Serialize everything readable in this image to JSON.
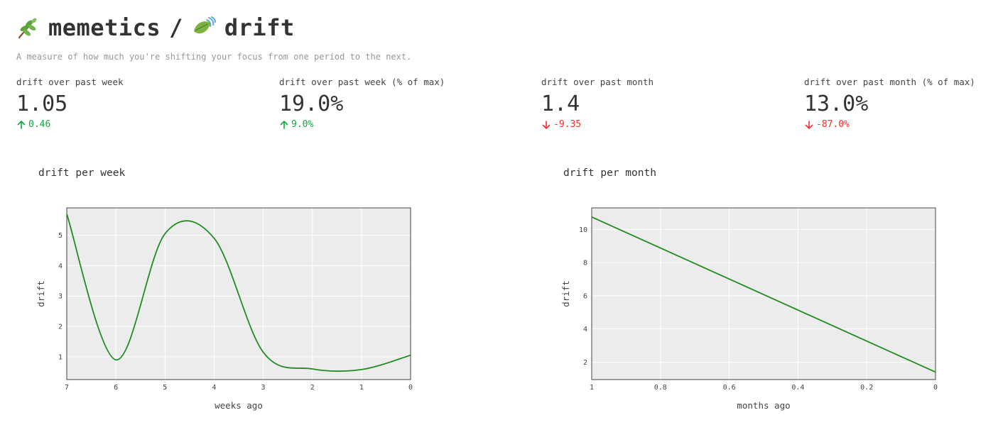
{
  "header": {
    "title_left": "memetics",
    "separator": "/",
    "title_right": "drift",
    "subtitle": "A measure of how much you're shifting your focus from one period to the next."
  },
  "metrics": [
    {
      "label": "drift over past week",
      "value": "1.05",
      "delta": "0.46",
      "direction": "up"
    },
    {
      "label": "drift over past week (% of max)",
      "value": "19.0%",
      "delta": "9.0%",
      "direction": "up"
    },
    {
      "label": "drift over past month",
      "value": "1.4",
      "delta": "-9.35",
      "direction": "down"
    },
    {
      "label": "drift over past month (% of max)",
      "value": "13.0%",
      "delta": "-87.0%",
      "direction": "down"
    }
  ],
  "colors": {
    "line": "#228b22",
    "plot_bg": "#ececec",
    "grid": "#ffffff",
    "delta_up": "#09ab3b",
    "delta_down": "#ff2b2b"
  },
  "chart_data": [
    {
      "type": "line",
      "title": "drift per week",
      "xlabel": "weeks ago",
      "ylabel": "drift",
      "x_reversed": true,
      "xlim": [
        7,
        0
      ],
      "ylim": [
        0.25,
        5.9
      ],
      "x_ticks": [
        7,
        6,
        5,
        4,
        3,
        2,
        1,
        0
      ],
      "y_ticks": [
        1,
        2,
        3,
        4,
        5
      ],
      "smooth": true,
      "x": [
        7,
        6,
        5,
        4,
        3,
        2,
        1,
        0
      ],
      "y": [
        5.7,
        0.9,
        5.05,
        4.9,
        1.15,
        0.6,
        0.58,
        1.05
      ]
    },
    {
      "type": "line",
      "title": "drift per month",
      "xlabel": "months ago",
      "ylabel": "drift",
      "x_reversed": true,
      "xlim": [
        1,
        0
      ],
      "ylim": [
        0.95,
        11.3
      ],
      "x_ticks": [
        1,
        0.8,
        0.6,
        0.4,
        0.2,
        0
      ],
      "y_ticks": [
        2,
        4,
        6,
        8,
        10
      ],
      "smooth": false,
      "x": [
        1,
        0
      ],
      "y": [
        10.75,
        1.4
      ]
    }
  ]
}
